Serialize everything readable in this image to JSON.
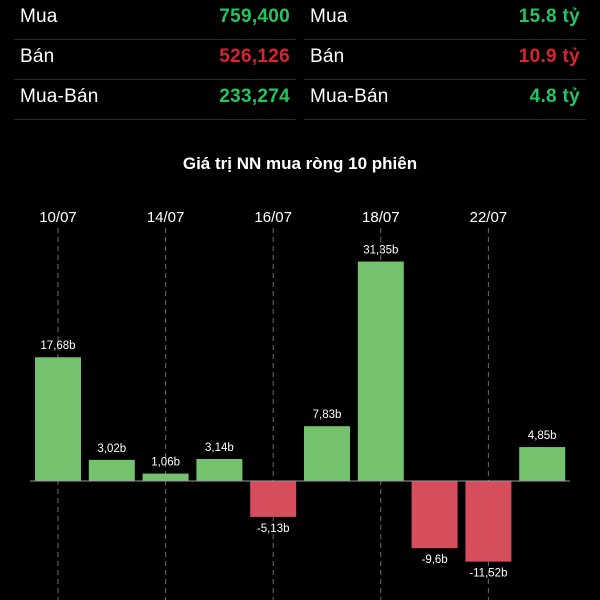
{
  "stats": {
    "left": [
      {
        "label": "Mua",
        "value": "759,400",
        "tone": "green"
      },
      {
        "label": "Bán",
        "value": "526,126",
        "tone": "red"
      },
      {
        "label": "Mua-Bán",
        "value": "233,274",
        "tone": "green"
      }
    ],
    "right": [
      {
        "label": "Mua",
        "value": "15.8 tỷ",
        "tone": "green"
      },
      {
        "label": "Bán",
        "value": "10.9 tỷ",
        "tone": "red"
      },
      {
        "label": "Mua-Bán",
        "value": "4.8 tỷ",
        "tone": "green"
      }
    ]
  },
  "colors": {
    "positive_bar": "#74c16e",
    "negative_bar": "#d64d5b",
    "green_text": "#22c55e",
    "red_text": "#d9232f"
  },
  "chart_data": {
    "type": "bar",
    "title": "Giá trị NN mua ròng 10 phiên",
    "xlabel": "",
    "ylabel": "",
    "tick_labels": [
      "10/07",
      "14/07",
      "16/07",
      "18/07",
      "22/07"
    ],
    "tick_category_index": [
      0,
      2,
      4,
      6,
      8
    ],
    "values": [
      17.68,
      3.02,
      1.06,
      3.14,
      -5.13,
      7.83,
      31.35,
      -9.6,
      -11.52,
      4.85
    ],
    "value_labels": [
      "17,68b",
      "3,02b",
      "1,06b",
      "3,14b",
      "-5,13b",
      "7,83b",
      "31,35b",
      "-9,6b",
      "-11,52b",
      "4,85b"
    ],
    "ylim": [
      -14,
      36
    ],
    "grid": "vertical dashed lines at labeled sessions",
    "legend": "none"
  }
}
